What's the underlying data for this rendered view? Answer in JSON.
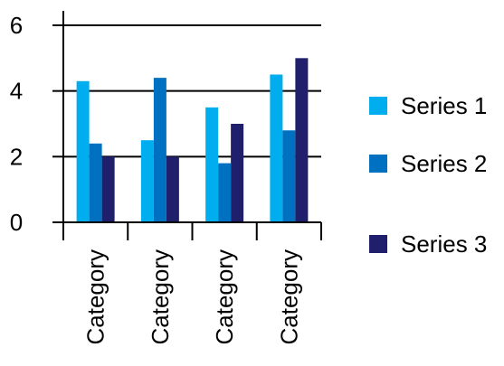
{
  "chart_data": {
    "type": "bar",
    "categories": [
      "Category",
      "Category",
      "Category",
      "Category"
    ],
    "series": [
      {
        "name": "Series 1",
        "values": [
          4.3,
          2.5,
          3.5,
          4.5
        ],
        "color": "#00AEEF"
      },
      {
        "name": "Series 2",
        "values": [
          2.4,
          4.4,
          1.8,
          2.8
        ],
        "color": "#0070C0"
      },
      {
        "name": "Series 3",
        "values": [
          2.0,
          2.0,
          3.0,
          5.0
        ],
        "color": "#1F1F6B"
      }
    ],
    "ylim": [
      0,
      6
    ],
    "yticks": [
      0,
      2,
      4,
      6
    ],
    "grid": true,
    "legend_position": "right"
  }
}
